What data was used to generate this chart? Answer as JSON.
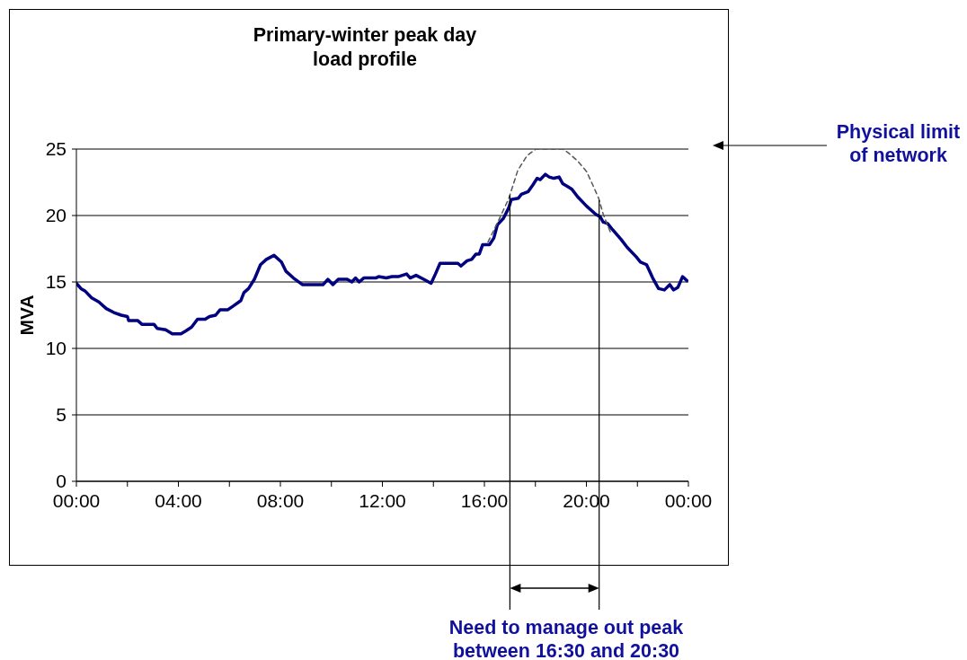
{
  "chart_data": {
    "type": "line",
    "title": "Primary-winter peak day load profile",
    "ylabel": "MVA",
    "xlim": [
      0,
      24
    ],
    "xticks": [
      {
        "value": 0,
        "label": "00:00"
      },
      {
        "value": 2,
        "label": null
      },
      {
        "value": 4,
        "label": "04:00"
      },
      {
        "value": 6,
        "label": null
      },
      {
        "value": 8,
        "label": "08:00"
      },
      {
        "value": 10,
        "label": null
      },
      {
        "value": 12,
        "label": "12:00"
      },
      {
        "value": 14,
        "label": null
      },
      {
        "value": 16,
        "label": "16:00"
      },
      {
        "value": 18,
        "label": null
      },
      {
        "value": 20,
        "label": "20:00"
      },
      {
        "value": 22,
        "label": null
      },
      {
        "value": 24,
        "label": "00:00"
      }
    ],
    "ylim": [
      0,
      25
    ],
    "yticks": [
      0,
      5,
      10,
      15,
      20,
      25
    ],
    "grid": "y",
    "series": [
      {
        "color": "#000080",
        "x": [
          0,
          0.18,
          0.35,
          0.6,
          0.88,
          1.17,
          1.47,
          1.76,
          2.0,
          2.05,
          2.4,
          2.58,
          3.05,
          3.17,
          3.5,
          3.76,
          4.1,
          4.28,
          4.52,
          4.75,
          5.05,
          5.22,
          5.46,
          5.63,
          5.93,
          6.16,
          6.45,
          6.57,
          6.75,
          6.98,
          7.22,
          7.45,
          7.75,
          8.04,
          8.22,
          8.51,
          8.86,
          9.68,
          9.86,
          10.06,
          10.27,
          10.62,
          10.8,
          10.95,
          11.09,
          11.27,
          11.74,
          11.85,
          12.15,
          12.38,
          12.62,
          12.95,
          13.09,
          13.32,
          13.62,
          13.91,
          14.08,
          14.26,
          14.96,
          15.08,
          15.32,
          15.5,
          15.67,
          15.8,
          15.93,
          16.2,
          16.37,
          16.51,
          16.75,
          16.96,
          17.05,
          17.33,
          17.45,
          17.72,
          17.9,
          18.07,
          18.19,
          18.39,
          18.54,
          18.72,
          18.93,
          19.07,
          19.25,
          19.42,
          19.66,
          20.01,
          20.36,
          20.54,
          20.66,
          20.83,
          21.0,
          21.36,
          21.6,
          21.95,
          22.12,
          22.36,
          22.6,
          22.83,
          23.06,
          23.27,
          23.42,
          23.59,
          23.77,
          23.94
        ],
        "values": [
          14.9,
          14.5,
          14.3,
          13.8,
          13.5,
          13.0,
          12.7,
          12.5,
          12.4,
          12.1,
          12.1,
          11.8,
          11.8,
          11.5,
          11.4,
          11.1,
          11.1,
          11.3,
          11.6,
          12.2,
          12.2,
          12.4,
          12.5,
          12.9,
          12.9,
          13.2,
          13.6,
          14.2,
          14.5,
          15.2,
          16.3,
          16.7,
          17.0,
          16.5,
          15.8,
          15.3,
          14.8,
          14.8,
          15.2,
          14.8,
          15.2,
          15.2,
          15.0,
          15.3,
          15.0,
          15.3,
          15.3,
          15.4,
          15.3,
          15.4,
          15.4,
          15.6,
          15.3,
          15.5,
          15.2,
          14.9,
          15.6,
          16.4,
          16.4,
          16.2,
          16.6,
          16.7,
          17.1,
          17.1,
          17.8,
          17.8,
          18.3,
          19.3,
          19.8,
          20.6,
          21.2,
          21.3,
          21.6,
          21.8,
          22.3,
          22.8,
          22.7,
          23.1,
          22.9,
          22.8,
          22.9,
          22.4,
          22.2,
          22.0,
          21.4,
          20.7,
          20.1,
          19.9,
          19.5,
          19.4,
          19.0,
          18.2,
          17.6,
          16.9,
          16.5,
          16.3,
          15.3,
          14.5,
          14.4,
          14.8,
          14.4,
          14.6,
          15.4,
          15.1
        ]
      },
      {
        "color": "#555555",
        "line_style": "dashed",
        "x": [
          16.14,
          16.55,
          16.96,
          17.31,
          17.67,
          18.02,
          18.49,
          19.07,
          19.3,
          19.66,
          20.01,
          20.25,
          20.48,
          20.66,
          20.95
        ],
        "values": [
          18.0,
          19.6,
          21.3,
          23.4,
          24.5,
          25.0,
          25.0,
          25.0,
          24.7,
          24.1,
          23.3,
          22.3,
          21.3,
          20.1,
          18.7
        ]
      }
    ],
    "ref_lines": [
      {
        "axis": "x",
        "value": 17,
        "color": "#000000"
      },
      {
        "axis": "x",
        "value": 20.5,
        "color": "#000000"
      }
    ],
    "annotations": [
      "Physical limit of network",
      "Need to manage out peak between 16:30 and 20:30"
    ]
  }
}
